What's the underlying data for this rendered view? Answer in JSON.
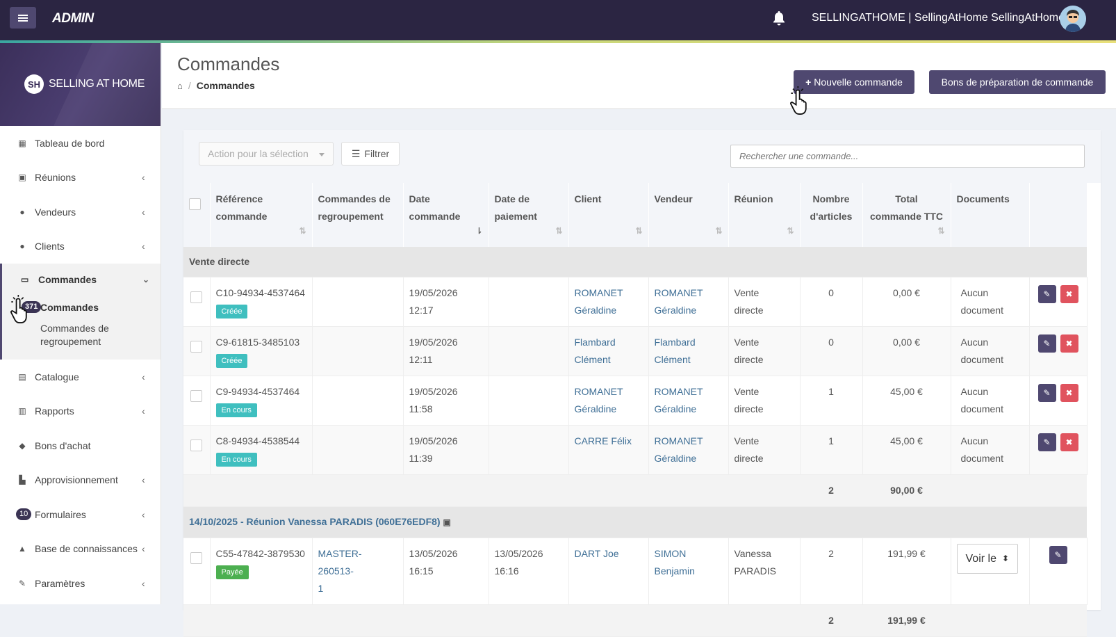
{
  "topbar": {
    "brand": "ADMIN",
    "user": "SELLINGATHOME | SellingAtHome SellingAtHome"
  },
  "sidebar": {
    "logo_initials": "SH",
    "logo_text": "SELLING AT HOME",
    "items": [
      {
        "label": "Tableau de bord"
      },
      {
        "label": "Réunions"
      },
      {
        "label": "Vendeurs"
      },
      {
        "label": "Clients"
      },
      {
        "label": "Commandes"
      },
      {
        "label": "Catalogue"
      },
      {
        "label": "Rapports"
      },
      {
        "label": "Bons d'achat"
      },
      {
        "label": "Approvisionnement"
      },
      {
        "label": "Formulaires",
        "badge": "10"
      },
      {
        "label": "Base de connaissances"
      },
      {
        "label": "Paramètres"
      }
    ],
    "sub": {
      "commandes": "Commandes",
      "badge": "371",
      "regroupement_1": "Commandes de",
      "regroupement_2": "regroupement"
    }
  },
  "header": {
    "title": "Commandes",
    "breadcrumb": "Commandes",
    "new_button": "Nouvelle commande",
    "prep_button": "Bons de préparation de commande"
  },
  "toolbar": {
    "action": "Action pour la sélection",
    "filter": "Filtrer",
    "search_placeholder": "Rechercher une commande..."
  },
  "table": {
    "headers": [
      "Référence commande",
      "Commandes de regroupement",
      "Date commande",
      "Date de paiement",
      "Client",
      "Vendeur",
      "Réunion",
      "Nombre d'articles",
      "Total commande TTC",
      "Documents"
    ],
    "groups": [
      {
        "title": "Vente directe",
        "rows": [
          {
            "ref": "C10-94934-4537464",
            "status": "Créée",
            "regroup": "",
            "date1": "19/05/2026",
            "date2": "12:17",
            "pay1": "",
            "pay2": "",
            "client1": "ROMANET",
            "client2": "Géraldine",
            "vend1": "ROMANET",
            "vend2": "Géraldine",
            "reun1": "Vente",
            "reun2": "directe",
            "nb": "0",
            "total": "0,00 €",
            "doc1": "Aucun",
            "doc2": "document"
          },
          {
            "ref": "C9-61815-3485103",
            "status": "Créée",
            "regroup": "",
            "date1": "19/05/2026",
            "date2": "12:11",
            "pay1": "",
            "pay2": "",
            "client1": "Flambard",
            "client2": "Clément",
            "vend1": "Flambard",
            "vend2": "Clément",
            "reun1": "Vente",
            "reun2": "directe",
            "nb": "0",
            "total": "0,00 €",
            "doc1": "Aucun",
            "doc2": "document"
          },
          {
            "ref": "C9-94934-4537464",
            "status": "En cours",
            "regroup": "",
            "date1": "19/05/2026",
            "date2": "11:58",
            "pay1": "",
            "pay2": "",
            "client1": "ROMANET",
            "client2": "Géraldine",
            "vend1": "ROMANET",
            "vend2": "Géraldine",
            "reun1": "Vente",
            "reun2": "directe",
            "nb": "1",
            "total": "45,00 €",
            "doc1": "Aucun",
            "doc2": "document"
          },
          {
            "ref": "C8-94934-4538544",
            "status": "En cours",
            "regroup": "",
            "date1": "19/05/2026",
            "date2": "11:39",
            "pay1": "",
            "pay2": "",
            "client1": "CARRE Félix",
            "client2": "",
            "vend1": "ROMANET",
            "vend2": "Géraldine",
            "reun1": "Vente",
            "reun2": "directe",
            "nb": "1",
            "total": "45,00 €",
            "doc1": "Aucun",
            "doc2": "document"
          }
        ],
        "sum_nb": "2",
        "sum_total": "90,00 €"
      },
      {
        "title": "14/10/2025 - Réunion Vanessa PARADIS (060E76EDF8)",
        "rows": [
          {
            "ref": "C55-47842-3879530",
            "status": "Payée",
            "regroup1": "MASTER-260513-",
            "regroup2": "1",
            "date1": "13/05/2026",
            "date2": "16:15",
            "pay1": "13/05/2026",
            "pay2": "16:16",
            "client1": "DART Joe",
            "client2": "",
            "vend1": "SIMON",
            "vend2": "Benjamin",
            "reun1": "Vanessa",
            "reun2": "PARADIS",
            "nb": "2",
            "total": "191,99 €",
            "doc": "Voir le"
          }
        ],
        "sum_nb": "2",
        "sum_total": "191,99 €"
      }
    ]
  }
}
